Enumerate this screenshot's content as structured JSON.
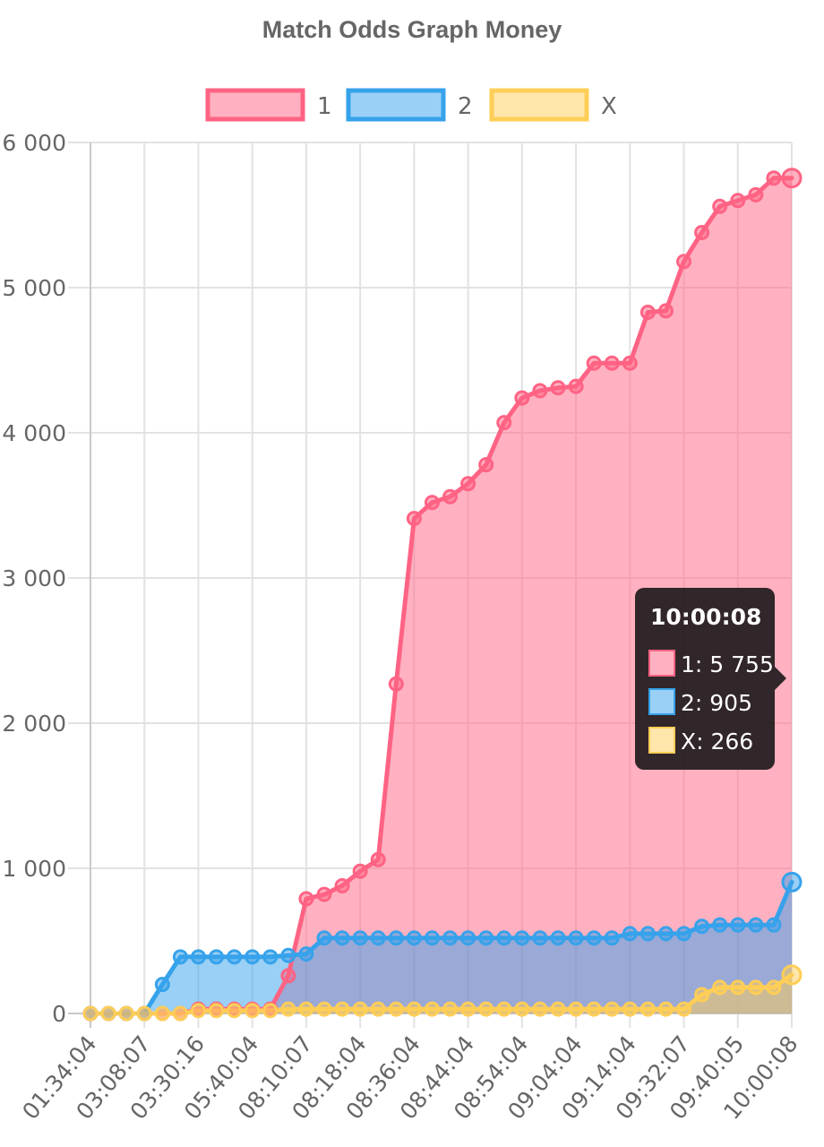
{
  "chart_data": {
    "type": "area",
    "title": "Match Odds Graph Money",
    "xlabel": "",
    "ylabel": "",
    "ylim": [
      0,
      6000
    ],
    "y_ticks": [
      0,
      1000,
      2000,
      3000,
      4000,
      5000,
      6000
    ],
    "y_tick_labels": [
      "0",
      "1 000",
      "2 000",
      "3 000",
      "4 000",
      "5 000",
      "6 000"
    ],
    "x_tick_labels": [
      "01:34:04",
      "03:08:07",
      "03:30:16",
      "05:40:04",
      "08:10:07",
      "08:18:04",
      "08:36:04",
      "08:44:04",
      "08:54:04",
      "09:04:04",
      "09:14:04",
      "09:32:07",
      "09:40:05",
      "10:00:08"
    ],
    "grid": true,
    "legend_position": "top",
    "num_points": 40,
    "series": [
      {
        "name": "1",
        "color": "#ff6384",
        "fill": "rgba(255,99,132,0.5)",
        "values": [
          0,
          0,
          0,
          0,
          0,
          0,
          30,
          30,
          30,
          30,
          30,
          260,
          790,
          820,
          880,
          980,
          1060,
          2270,
          3410,
          3520,
          3560,
          3650,
          3780,
          4070,
          4240,
          4290,
          4310,
          4320,
          4480,
          4480,
          4480,
          4830,
          4840,
          5180,
          5380,
          5560,
          5600,
          5640,
          5755,
          5755
        ]
      },
      {
        "name": "2",
        "color": "#36a2eb",
        "fill": "rgba(54,162,235,0.5)",
        "values": [
          0,
          0,
          0,
          0,
          200,
          390,
          390,
          390,
          390,
          390,
          390,
          400,
          410,
          520,
          520,
          520,
          520,
          520,
          520,
          520,
          520,
          520,
          520,
          520,
          520,
          520,
          520,
          520,
          520,
          520,
          550,
          550,
          550,
          550,
          600,
          610,
          610,
          610,
          610,
          905
        ]
      },
      {
        "name": "X",
        "color": "#ffce56",
        "fill": "rgba(255,206,86,0.5)",
        "values": [
          0,
          0,
          0,
          0,
          0,
          0,
          20,
          20,
          20,
          20,
          20,
          30,
          30,
          30,
          30,
          30,
          30,
          30,
          30,
          30,
          30,
          30,
          30,
          30,
          30,
          30,
          30,
          30,
          30,
          30,
          30,
          30,
          30,
          30,
          130,
          180,
          180,
          180,
          180,
          266
        ]
      }
    ],
    "tooltip": {
      "title": "10:00:08",
      "rows": [
        "1: 5 755",
        "2: 905",
        "X: 266"
      ]
    }
  }
}
